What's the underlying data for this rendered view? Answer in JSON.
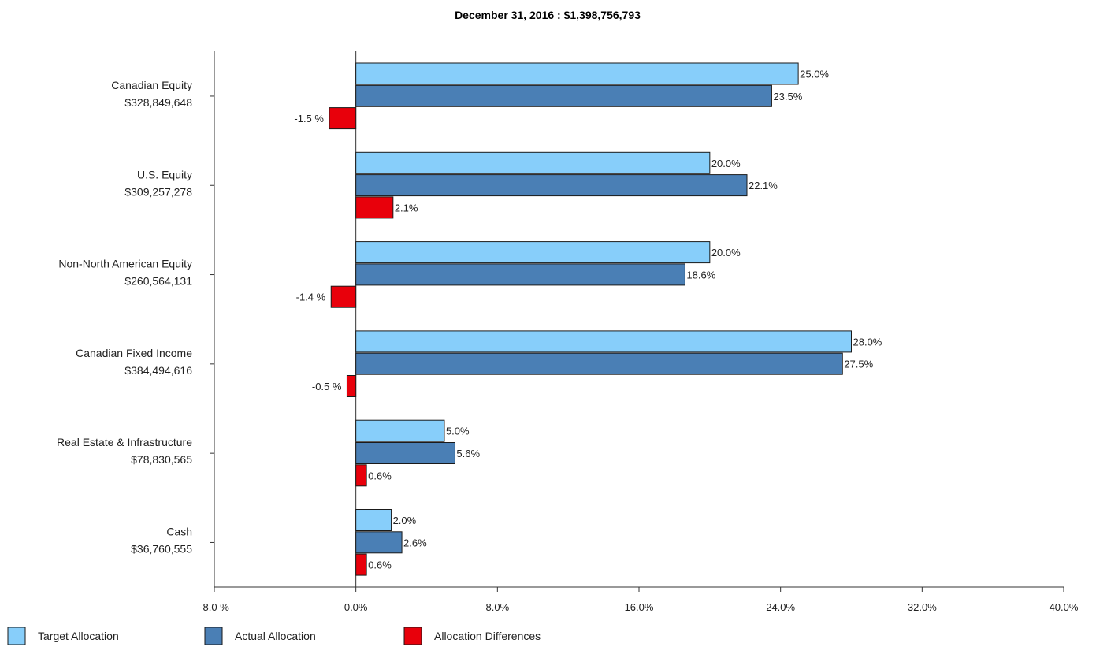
{
  "chart_data": {
    "type": "bar",
    "orientation": "horizontal",
    "title": "December 31, 2016 : $1,398,756,793",
    "categories": [
      {
        "name": "Canadian Equity",
        "amount": "$328,849,648"
      },
      {
        "name": "U.S. Equity",
        "amount": "$309,257,278"
      },
      {
        "name": "Non-North American Equity",
        "amount": "$260,564,131"
      },
      {
        "name": "Canadian Fixed Income",
        "amount": "$384,494,616"
      },
      {
        "name": "Real Estate & Infrastructure",
        "amount": "$78,830,565"
      },
      {
        "name": "Cash",
        "amount": "$36,760,555"
      }
    ],
    "series": [
      {
        "name": "Target Allocation",
        "color": "#87cefa",
        "values": [
          25.0,
          20.0,
          20.0,
          28.0,
          5.0,
          2.0
        ],
        "labels": [
          "25.0%",
          "20.0%",
          "20.0%",
          "28.0%",
          "5.0%",
          "2.0%"
        ]
      },
      {
        "name": "Actual Allocation",
        "color": "#4a7fb5",
        "values": [
          23.5,
          22.1,
          18.6,
          27.5,
          5.6,
          2.6
        ],
        "labels": [
          "23.5%",
          "22.1%",
          "18.6%",
          "27.5%",
          "5.6%",
          "2.6%"
        ]
      },
      {
        "name": "Allocation Differences",
        "color": "#e8000b",
        "values": [
          -1.5,
          2.1,
          -1.4,
          -0.5,
          0.6,
          0.6
        ],
        "labels": [
          "-1.5 %",
          "2.1%",
          "-1.4 %",
          "-0.5 %",
          "0.6%",
          "0.6%"
        ]
      }
    ],
    "xlim": [
      -8,
      40
    ],
    "xticks": [
      -8,
      0,
      8,
      16,
      24,
      32,
      40
    ],
    "xtick_labels": [
      "-8.0 %",
      "0.0%",
      "8.0%",
      "16.0%",
      "24.0%",
      "32.0%",
      "40.0%"
    ],
    "grid": false,
    "legend": "bottom-left"
  }
}
